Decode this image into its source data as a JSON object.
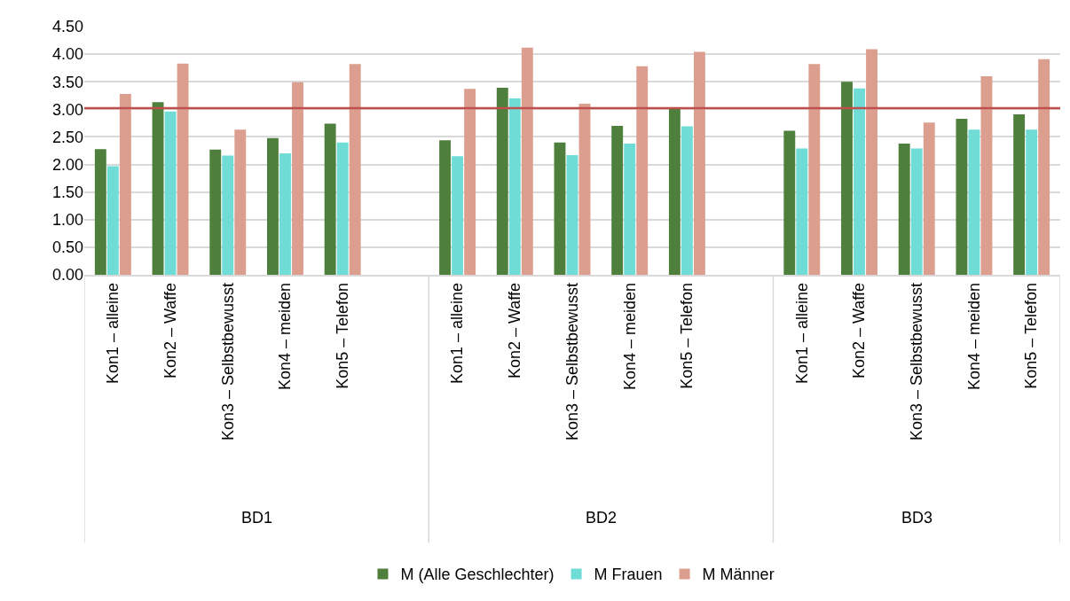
{
  "chart_data": {
    "type": "bar",
    "categories": [
      "Kon1 – alleine",
      "Kon2 – Waffe",
      "Kon3 – Selbstbewusst",
      "Kon4 – meiden",
      "Kon5 – Telefon",
      null,
      "Kon1 – alleine",
      "Kon2 – Waffe",
      "Kon3 – Selbstbewusst",
      "Kon4 – meiden",
      "Kon5 – Telefon",
      null,
      "Kon1 – alleine",
      "Kon2 – Waffe",
      "Kon3 – Selbstbewusst",
      "Kon4 – meiden",
      "Kon5 – Telefon"
    ],
    "series": [
      {
        "name": "M (Alle Geschlechter)",
        "color": "#4e7f3c",
        "values": [
          2.28,
          3.13,
          2.27,
          2.48,
          2.74,
          null,
          2.44,
          3.39,
          2.4,
          2.7,
          3.01,
          null,
          2.61,
          3.5,
          2.38,
          2.83,
          2.91
        ]
      },
      {
        "name": "M Frauen",
        "color": "#6fdcd6",
        "values": [
          1.97,
          2.96,
          2.16,
          2.2,
          2.4,
          null,
          2.15,
          3.2,
          2.17,
          2.38,
          2.69,
          null,
          2.29,
          3.38,
          2.29,
          2.63,
          2.63
        ]
      },
      {
        "name": "M Männer",
        "color": "#dc9f8f",
        "values": [
          3.28,
          3.83,
          2.63,
          3.49,
          3.82,
          null,
          3.37,
          4.12,
          3.1,
          3.78,
          4.04,
          null,
          3.82,
          4.09,
          2.76,
          3.6,
          3.91
        ]
      }
    ],
    "annotations": [
      "BD1",
      "BD2",
      "BD3"
    ],
    "ylim": [
      0,
      4.5
    ],
    "yticks": [
      {
        "value": 0,
        "label": "0.00"
      },
      {
        "value": 0.5,
        "label": "0.50"
      },
      {
        "value": 1,
        "label": "1.00"
      },
      {
        "value": 1.5,
        "label": "1.50"
      },
      {
        "value": 2,
        "label": "2.00"
      },
      {
        "value": 2.5,
        "label": "2.50"
      },
      {
        "value": 3,
        "label": "3.00"
      },
      {
        "value": 3.5,
        "label": "3.50"
      },
      {
        "value": 4,
        "label": "4.00"
      },
      {
        "value": 4.5,
        "label": "4.50"
      }
    ],
    "ref_lines": [
      {
        "axis": "y",
        "value": 3.02,
        "color": "#c0504d"
      }
    ],
    "grid": "y",
    "legend": "bottom"
  }
}
